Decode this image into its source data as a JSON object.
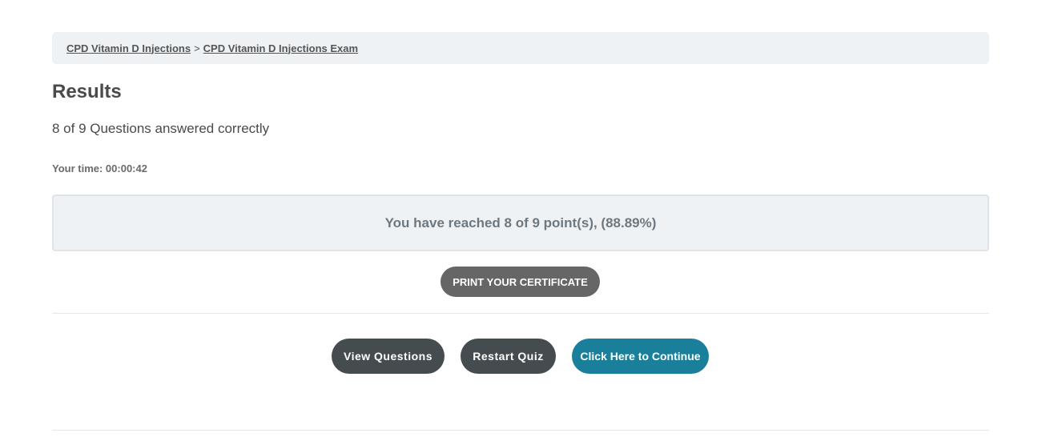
{
  "breadcrumb": {
    "items": [
      "CPD Vitamin D Injections",
      "CPD Vitamin D Injections Exam"
    ],
    "separator": ">"
  },
  "results": {
    "title": "Results",
    "correct_text": "8 of 9 Questions answered correctly",
    "time_text": "Your time: 00:00:42",
    "points_text": "You have reached 8 of 9 point(s), (88.89%)"
  },
  "buttons": {
    "print_certificate": "PRINT YOUR CERTIFICATE",
    "view_questions": "View Questions",
    "restart_quiz": "Restart Quiz",
    "continue": "Click Here to Continue"
  },
  "colors": {
    "primary": "#197f9a",
    "dark_button": "#454c50",
    "certificate_button": "#666666"
  }
}
